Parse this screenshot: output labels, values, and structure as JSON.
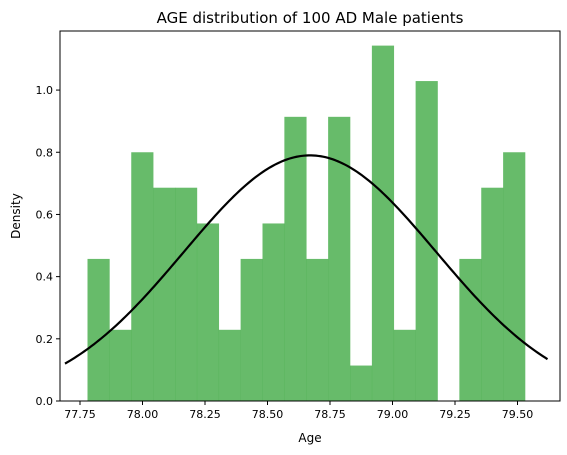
{
  "chart_data": {
    "type": "bar",
    "title": "AGE distribution of 100 AD Male patients",
    "xlabel": "Age",
    "ylabel": "Density",
    "xlim": [
      77.67,
      79.67
    ],
    "ylim": [
      0.0,
      1.19
    ],
    "xticks": [
      77.75,
      78.0,
      78.25,
      78.5,
      78.75,
      79.0,
      79.25,
      79.5
    ],
    "xtick_labels": [
      "77.75",
      "78.00",
      "78.25",
      "78.50",
      "78.75",
      "79.00",
      "79.25",
      "79.50"
    ],
    "yticks": [
      0.0,
      0.2,
      0.4,
      0.6,
      0.8,
      1.0
    ],
    "ytick_labels": [
      "0.0",
      "0.2",
      "0.4",
      "0.6",
      "0.8",
      "1.0"
    ],
    "grid": false,
    "colors": {
      "bars": "#4caf50",
      "curve": "#000000"
    },
    "histogram": {
      "bin_start": 77.78,
      "bin_width": 0.0875,
      "densities": [
        0.457,
        0.229,
        0.8,
        0.686,
        0.686,
        0.571,
        0.229,
        0.457,
        0.571,
        0.914,
        0.457,
        0.914,
        0.114,
        1.143,
        0.229,
        1.029,
        0.0,
        0.457,
        0.686,
        0.8
      ]
    },
    "normal_curve": {
      "mean": 78.67,
      "std": 0.505,
      "x_range": [
        77.69,
        79.62
      ]
    }
  }
}
